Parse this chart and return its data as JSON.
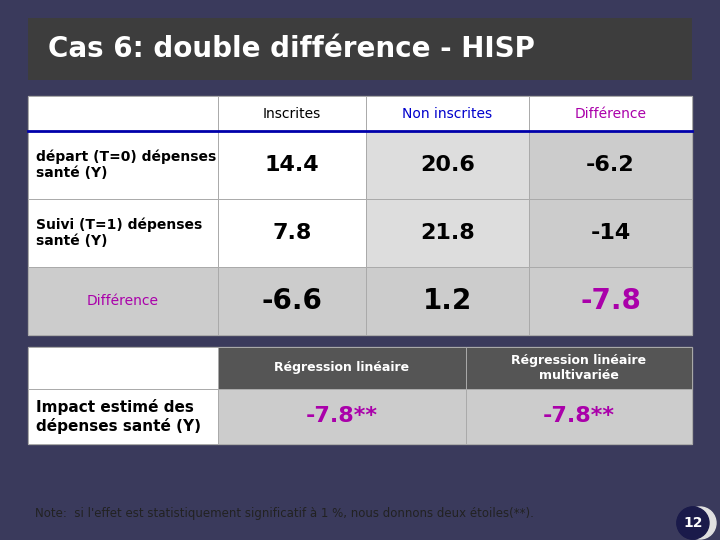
{
  "title": "Cas 6: double différence - HISP",
  "title_bg": "#3d3d3d",
  "title_color": "#ffffff",
  "background": "#ffffff",
  "slide_bg": "#3a3a5c",
  "col_headers": [
    "",
    "Inscrites",
    "Non inscrites",
    "Différence"
  ],
  "col_header_colors": [
    "#ffffff",
    "#ffffff",
    "#0000cc",
    "#aa00aa"
  ],
  "col_header_bg": [
    "#ffffff",
    "#ffffff",
    "#ffffff",
    "#ffffff"
  ],
  "row1_label": "départ (T=0) dépenses\nsanté (Y)",
  "row2_label": "Suivi (T=1) dépenses\nsanté (Y)",
  "row3_label": "Différence",
  "data": [
    [
      "14.4",
      "20.6",
      "-6.2"
    ],
    [
      "7.8",
      "21.8",
      "-14"
    ],
    [
      "-6.6",
      "1.2",
      "-7.8"
    ]
  ],
  "row_labels": [
    "départ (T=0) dépenses\nsanté (Y)",
    "Suivi (T=1) dépenses\nsanté (Y)",
    "Différence"
  ],
  "row_label_colors": [
    "#000000",
    "#000000",
    "#aa00aa"
  ],
  "row_label_bold": [
    true,
    true,
    false
  ],
  "cell_bg": [
    [
      "#ffffff",
      "#dddddd",
      "#cccccc"
    ],
    [
      "#ffffff",
      "#dddddd",
      "#cccccc"
    ],
    [
      "#cccccc",
      "#cccccc",
      "#cccccc"
    ]
  ],
  "data_colors": [
    [
      "#000000",
      "#000000",
      "#000000"
    ],
    [
      "#000000",
      "#000000",
      "#000000"
    ],
    [
      "#000000",
      "#000000",
      "#aa00aa"
    ]
  ],
  "section2_header": [
    "",
    "Régression linéaire",
    "Régression linéaire\nmultivariée"
  ],
  "section2_header_bg": "#555555",
  "section2_header_color": "#ffffff",
  "section2_row_label": "Impact estimé des\ndépenses santé (Y)",
  "section2_values": [
    "-7.8**",
    "-7.8**"
  ],
  "section2_val_color": "#aa00aa",
  "section2_cell_bg": "#cccccc",
  "note": "Note:  si l'effet est statistiquement significatif à 1 %, nous donnons deux étoiles(**).",
  "table_border_color": "#000000",
  "header_sep_color": "#0000aa"
}
